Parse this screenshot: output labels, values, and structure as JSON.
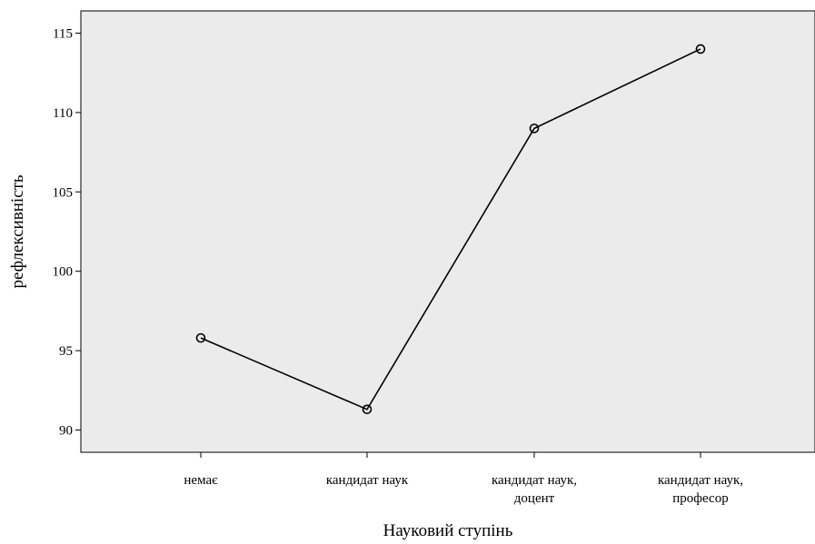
{
  "chart_data": {
    "type": "line",
    "xlabel": "Науковий ступінь",
    "ylabel": "рефлексивність",
    "categories": [
      [
        "немає"
      ],
      [
        "кандидат наук"
      ],
      [
        "кандидат наук,",
        "доцент"
      ],
      [
        "кандидат наук,",
        "професор"
      ]
    ],
    "series": [
      {
        "values": [
          95.8,
          91.3,
          109.0,
          114.0
        ]
      }
    ],
    "ylim": [
      88.6,
      116.4
    ],
    "yticks": [
      90,
      95,
      100,
      105,
      110,
      115
    ],
    "grid": false,
    "plot_background": "#ebebeb",
    "line_color": "#000000",
    "marker": "circle-open"
  }
}
